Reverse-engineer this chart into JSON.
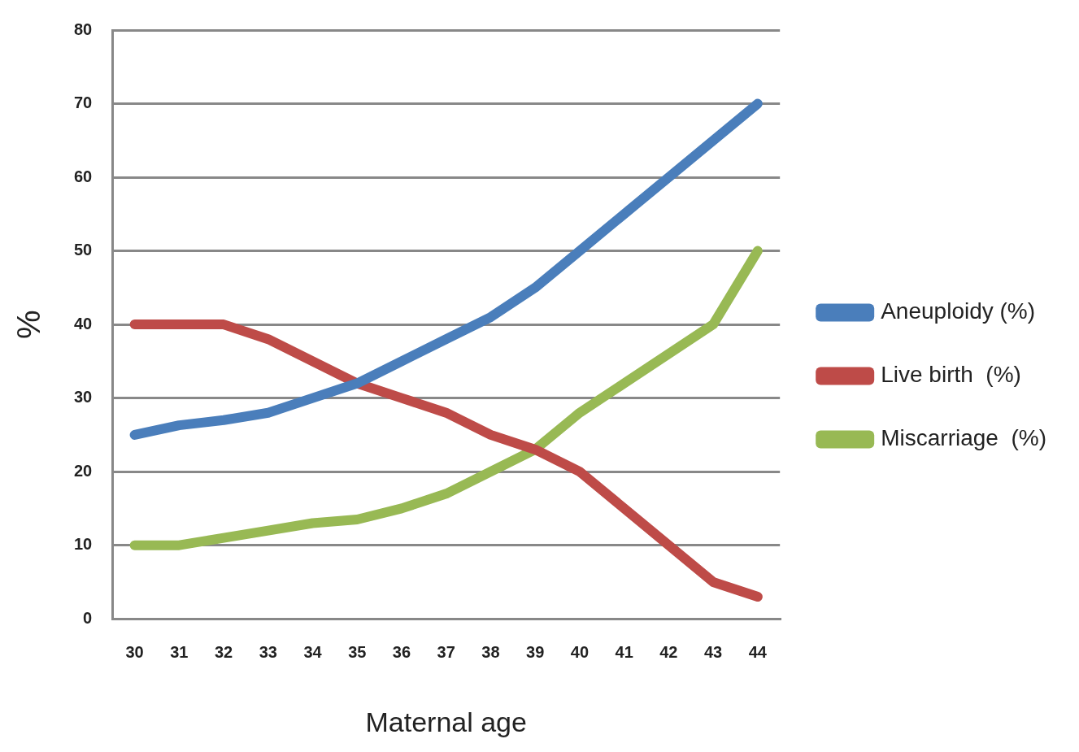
{
  "chart_data": {
    "type": "line",
    "xlabel": "Maternal age",
    "ylabel": "%",
    "categories": [
      "30",
      "31",
      "32",
      "33",
      "34",
      "35",
      "36",
      "37",
      "38",
      "39",
      "40",
      "41",
      "42",
      "43",
      "44"
    ],
    "series": [
      {
        "name": "Aneuploidy (%)",
        "color": "#4a7ebb",
        "values": [
          25,
          26.3,
          27,
          28,
          30,
          32,
          35,
          38,
          41,
          45,
          50,
          55,
          60,
          65,
          70
        ]
      },
      {
        "name": "Live birth  (%)",
        "color": "#be4b48",
        "values": [
          40,
          40,
          40,
          38,
          35,
          32,
          30,
          28,
          25,
          23,
          20,
          15,
          10,
          5,
          3
        ]
      },
      {
        "name": "Miscarriage  (%)",
        "color": "#98b954",
        "values": [
          10,
          10,
          11,
          12,
          13,
          13.5,
          15,
          17,
          20,
          23,
          28,
          32,
          36,
          40,
          50
        ]
      }
    ],
    "ylim": [
      0,
      80
    ],
    "yticks": [
      0,
      10,
      20,
      30,
      40,
      50,
      60,
      70,
      80
    ],
    "grid": "y",
    "legend": "right",
    "marker": "none",
    "line_style": "solid"
  }
}
